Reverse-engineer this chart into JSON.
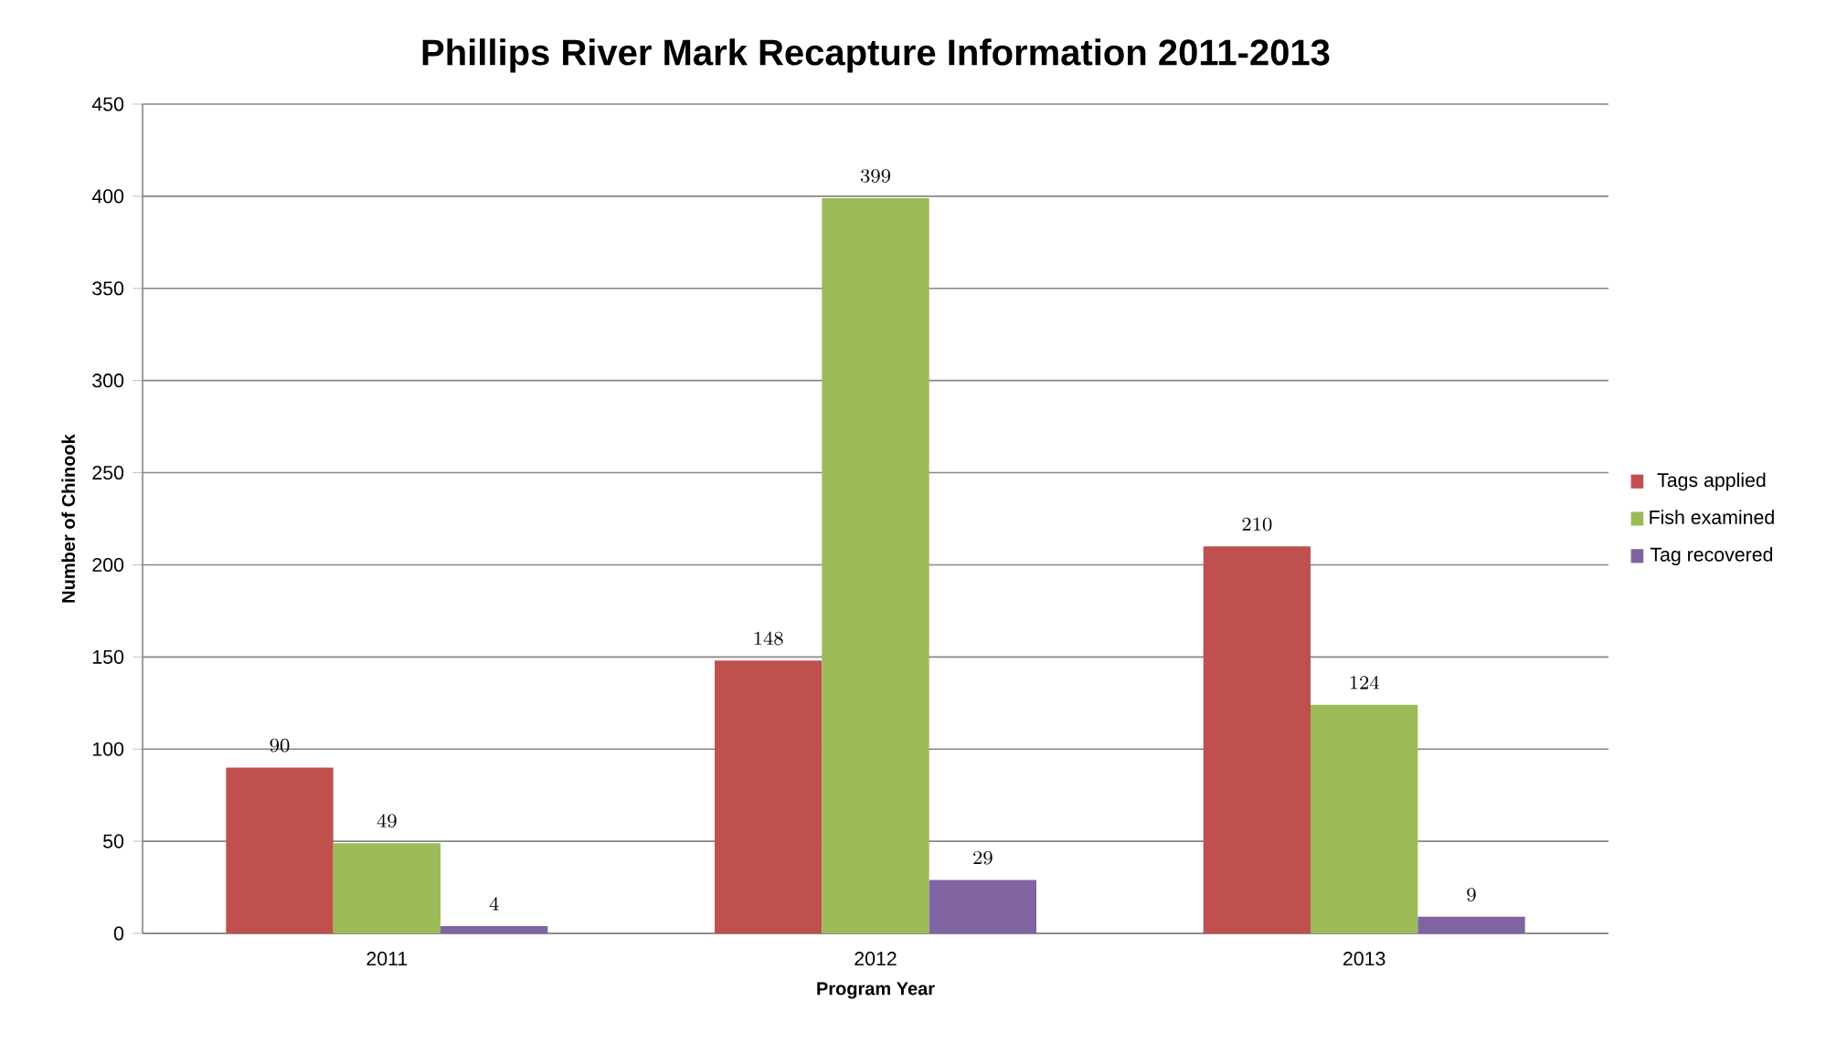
{
  "chart_data": {
    "type": "bar",
    "title": "Phillips River Mark Recapture Information 2011-2013",
    "xlabel": "Program Year",
    "ylabel": "Number of Chinook",
    "categories": [
      "2011",
      "2012",
      "2013"
    ],
    "series": [
      {
        "name": "Tags applied",
        "color": "#c0504d",
        "values": [
          90,
          148,
          210
        ]
      },
      {
        "name": "Fish examined",
        "color": "#9bbb59",
        "values": [
          49,
          399,
          124
        ]
      },
      {
        "name": "Tag recovered",
        "color": "#8064a2",
        "values": [
          4,
          29,
          9
        ]
      }
    ],
    "ylim": [
      0,
      450
    ],
    "yticks": [
      0,
      50,
      100,
      150,
      200,
      250,
      300,
      350,
      400,
      450
    ],
    "grid": "y",
    "legend": "right",
    "data_labels": true
  }
}
